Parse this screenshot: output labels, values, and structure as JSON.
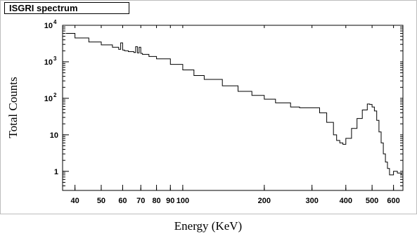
{
  "chart_data": {
    "type": "line",
    "title": "ISGRI spectrum",
    "xlabel": "Energy (KeV)",
    "ylabel": "Total Counts",
    "x_scale": "log",
    "y_scale": "log",
    "xlim": [
      36,
      650
    ],
    "ylim": [
      0.3,
      10000
    ],
    "grid": false,
    "x_ticks": [
      {
        "value": 40,
        "label": "40"
      },
      {
        "value": 50,
        "label": "50"
      },
      {
        "value": 60,
        "label": "60"
      },
      {
        "value": 70,
        "label": "70"
      },
      {
        "value": 80,
        "label": "80"
      },
      {
        "value": 90,
        "label": "90"
      },
      {
        "value": 100,
        "label": "100"
      },
      {
        "value": 200,
        "label": "200"
      },
      {
        "value": 300,
        "label": "300"
      },
      {
        "value": 400,
        "label": "400"
      },
      {
        "value": 500,
        "label": "500"
      },
      {
        "value": 600,
        "label": "600"
      }
    ],
    "y_ticks": [
      {
        "value": 1,
        "label": "1"
      },
      {
        "value": 10,
        "label": "10"
      },
      {
        "value": 100,
        "label": "10",
        "exp": "2"
      },
      {
        "value": 1000,
        "label": "10",
        "exp": "3"
      },
      {
        "value": 10000,
        "label": "10",
        "exp": "4"
      }
    ],
    "series": [
      {
        "x": [
          37,
          40,
          45,
          50,
          55,
          58,
          59,
          60,
          61,
          63,
          66,
          67,
          68,
          69,
          70,
          71,
          75,
          80,
          90,
          100,
          110,
          120,
          140,
          160,
          180,
          200,
          220,
          250,
          270,
          300,
          320,
          340,
          360,
          370,
          380,
          390,
          400,
          420,
          440,
          460,
          480,
          490,
          500,
          510,
          520,
          530,
          540,
          550,
          560,
          570,
          580,
          600,
          620,
          640
        ],
        "y": [
          6000,
          4500,
          3500,
          2900,
          2500,
          2200,
          3300,
          2100,
          2000,
          1900,
          1800,
          2600,
          1750,
          2500,
          1700,
          1600,
          1400,
          1200,
          850,
          600,
          420,
          330,
          220,
          155,
          120,
          95,
          75,
          58,
          55,
          55,
          40,
          22,
          10,
          7,
          6,
          5.5,
          8,
          15,
          28,
          48,
          70,
          68,
          58,
          45,
          25,
          12,
          6,
          3,
          1.8,
          1.2,
          0.8,
          1,
          0.9,
          0.8
        ]
      }
    ]
  }
}
